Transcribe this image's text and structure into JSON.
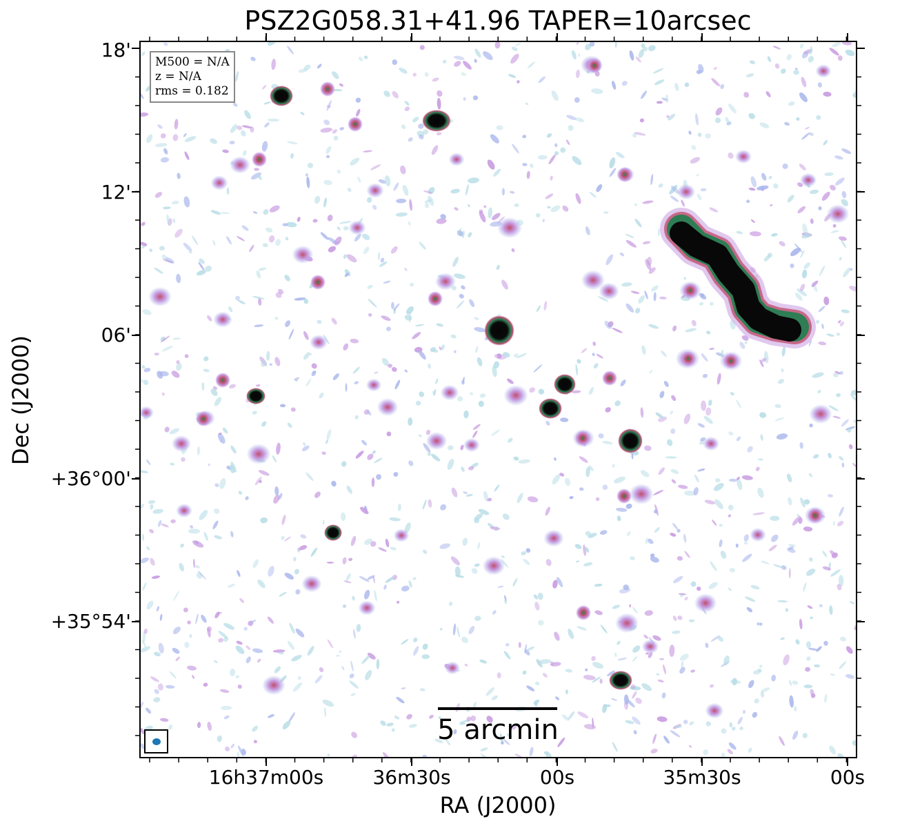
{
  "title": "PSZ2G058.31+41.96 TAPER=10arcsec",
  "xlabel": "RA (J2000)",
  "ylabel": "Dec (J2000)",
  "yticks": [
    "18'",
    "12'",
    "06'",
    "+36°00'",
    "+35°54'"
  ],
  "xticks": [
    "16h37m00s",
    "36m30s",
    "00s",
    "35m30s",
    "00s"
  ],
  "info": {
    "m500": "M500 = N/A",
    "z": "z = N/A",
    "rms": "rms = 0.182"
  },
  "scalebar_label": "5 arcmin",
  "colors": {
    "noise_light": "#b8dde6",
    "noise_blue": "#a9b6ec",
    "noise_purple": "#c79ae0",
    "source_red": "#c0506e",
    "source_green": "#2e7d55",
    "source_core": "#050505",
    "beam": "#1f77b4"
  }
}
